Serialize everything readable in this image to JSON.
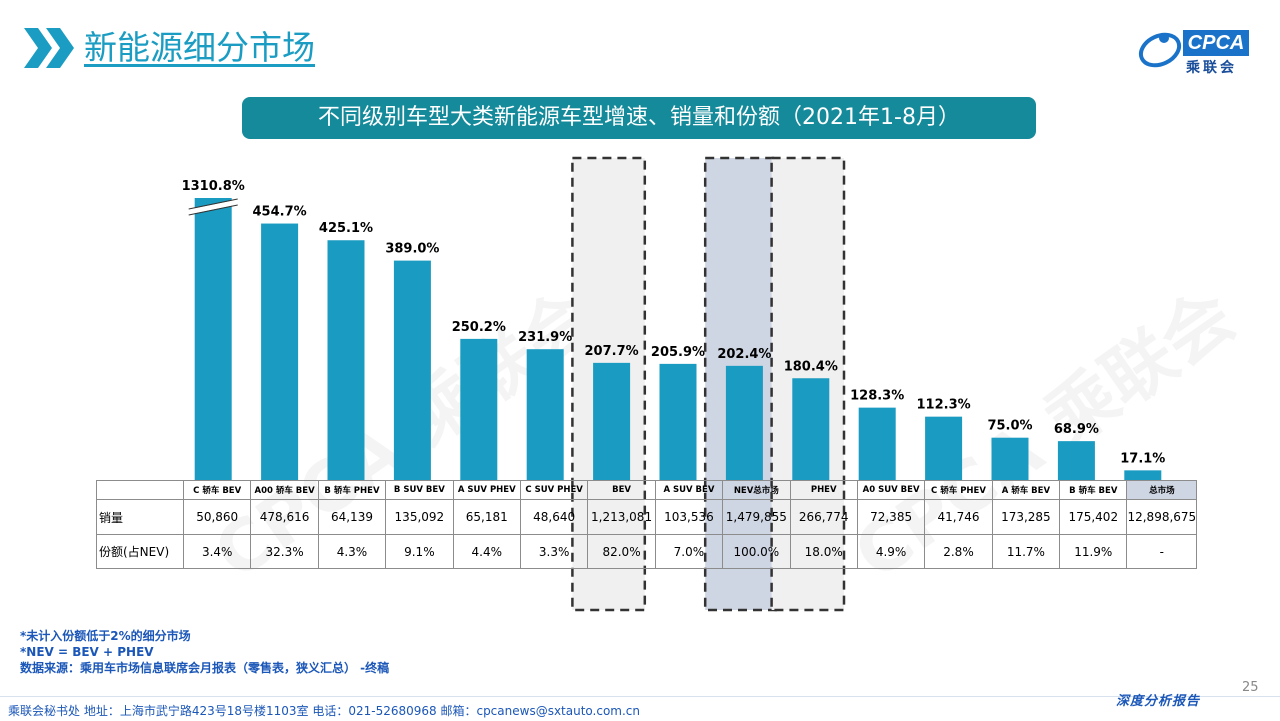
{
  "header": {
    "title": "新能源细分市场",
    "logo_text": "CPCA",
    "logo_sub": "乘联会",
    "watermark": "CPCA 乘联会"
  },
  "colors": {
    "bar": "#1a9bc1",
    "accent": "#148a9a",
    "shaded": "#cfd6e3",
    "box_light": "#f0f0f0"
  },
  "chart_data": {
    "type": "bar",
    "title": "不同级别车型大类新能源车型增速、销量和份额（2021年1-8月）",
    "categories": [
      "C 轿车 BEV",
      "A00 轿车 BEV",
      "B 轿车 PHEV",
      "B SUV BEV",
      "A SUV PHEV",
      "C SUV PHEV",
      "BEV",
      "A SUV BEV",
      "NEV总市场",
      "PHEV",
      "A0 SUV BEV",
      "C 轿车 PHEV",
      "A 轿车 BEV",
      "B 轿车 BEV",
      "总市场"
    ],
    "values": [
      1310.8,
      454.7,
      425.1,
      389.0,
      250.2,
      231.9,
      207.7,
      205.9,
      202.4,
      180.4,
      128.3,
      112.3,
      75.0,
      68.9,
      17.1
    ],
    "value_labels": [
      "1310.8%",
      "454.7%",
      "425.1%",
      "389.0%",
      "250.2%",
      "231.9%",
      "207.7%",
      "205.9%",
      "202.4%",
      "180.4%",
      "128.3%",
      "112.3%",
      "75.0%",
      "68.9%",
      "17.1%"
    ],
    "broken_axis_bar": "C 轿车 BEV",
    "highlighted": [
      "BEV",
      "NEV总市场",
      "PHEV"
    ],
    "ylim": [
      0,
      500
    ],
    "xlabel": "",
    "ylabel": ""
  },
  "table": {
    "row_labels": [
      "销量",
      "份额(占NEV)"
    ],
    "sales": [
      "50,860",
      "478,616",
      "64,139",
      "135,092",
      "65,181",
      "48,640",
      "1,213,081",
      "103,536",
      "1,479,855",
      "266,774",
      "72,385",
      "41,746",
      "173,285",
      "175,402",
      "12,898,675"
    ],
    "share": [
      "3.4%",
      "32.3%",
      "4.3%",
      "9.1%",
      "4.4%",
      "3.3%",
      "82.0%",
      "7.0%",
      "100.0%",
      "18.0%",
      "4.9%",
      "2.8%",
      "11.7%",
      "11.9%",
      "-"
    ]
  },
  "notes": [
    "*未计入份额低于2%的细分市场",
    "*NEV = BEV + PHEV",
    "数据来源：乘用车市场信息联席会月报表（零售表，狭义汇总）  -终稿"
  ],
  "page_number": "25",
  "footer": {
    "text": "乘联会秘书处    地址：上海市武宁路423号18号楼1103室    电话：021-52680968    邮箱：cpcanews@sxtauto.com.cn",
    "right": "深度分析报告"
  }
}
